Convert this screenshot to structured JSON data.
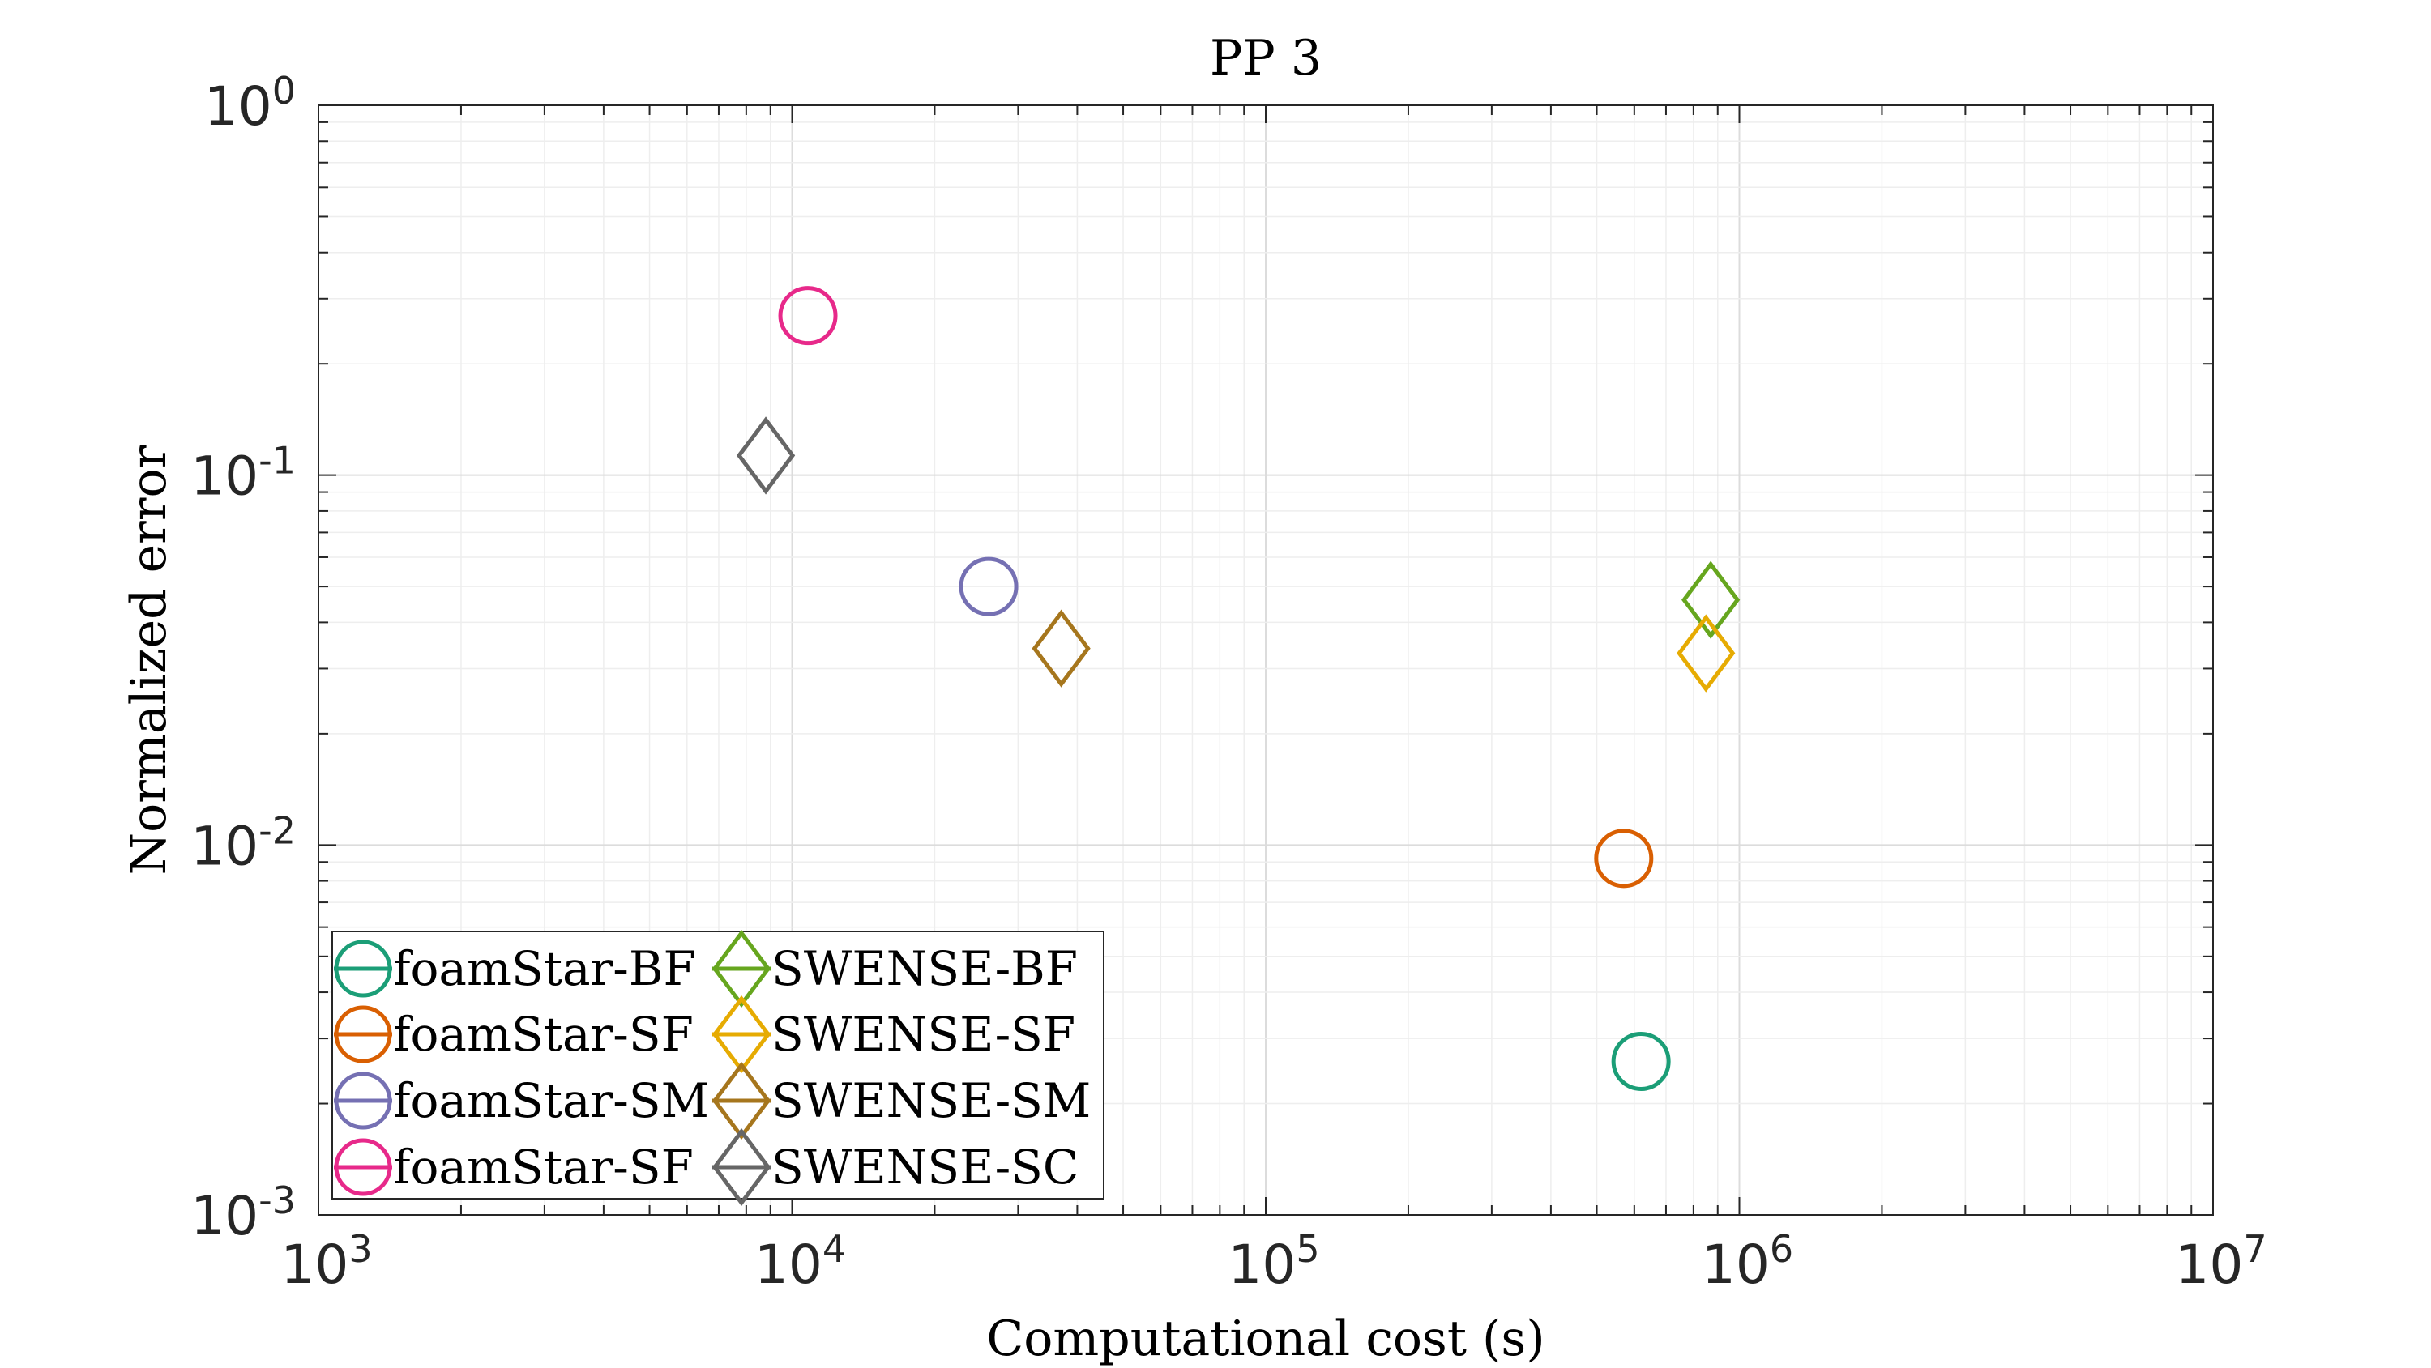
{
  "chart_data": {
    "type": "scatter",
    "title": "PP 3",
    "xlabel": "Computational cost (s)",
    "ylabel": "Normalized error",
    "xscale": "log",
    "yscale": "log",
    "xlim": [
      1000,
      10000000
    ],
    "ylim": [
      0.001,
      1
    ],
    "grid": true,
    "legend_position": "bottom-left",
    "x_ticks": [
      {
        "value": 1000,
        "base": "10",
        "exp": "3"
      },
      {
        "value": 10000,
        "base": "10",
        "exp": "4"
      },
      {
        "value": 100000,
        "base": "10",
        "exp": "5"
      },
      {
        "value": 1000000,
        "base": "10",
        "exp": "6"
      },
      {
        "value": 10000000,
        "base": "10",
        "exp": "7"
      }
    ],
    "y_ticks": [
      {
        "value": 0.001,
        "base": "10",
        "exp": "-3"
      },
      {
        "value": 0.01,
        "base": "10",
        "exp": "-2"
      },
      {
        "value": 0.1,
        "base": "10",
        "exp": "-1"
      },
      {
        "value": 1,
        "base": "10",
        "exp": "0"
      }
    ],
    "series": [
      {
        "name": "foamStar-BF",
        "marker": "circle",
        "color": "#1b9e77",
        "x": 620000,
        "y": 0.0026
      },
      {
        "name": "foamStar-SF",
        "marker": "circle",
        "color": "#d95f02",
        "x": 570000,
        "y": 0.0092
      },
      {
        "name": "foamStar-SM",
        "marker": "circle",
        "color": "#7570b3",
        "x": 26000,
        "y": 0.05
      },
      {
        "name": "foamStar-SF",
        "marker": "circle",
        "color": "#e7298a",
        "x": 10800,
        "y": 0.27
      },
      {
        "name": "SWENSE-BF",
        "marker": "diamond",
        "color": "#66a61e",
        "x": 870000,
        "y": 0.046
      },
      {
        "name": "SWENSE-SF",
        "marker": "diamond",
        "color": "#e6ab02",
        "x": 850000,
        "y": 0.033
      },
      {
        "name": "SWENSE-SM",
        "marker": "diamond",
        "color": "#a6761d",
        "x": 37000,
        "y": 0.034
      },
      {
        "name": "SWENSE-SC",
        "marker": "diamond",
        "color": "#666666",
        "x": 8800,
        "y": 0.113
      }
    ]
  }
}
